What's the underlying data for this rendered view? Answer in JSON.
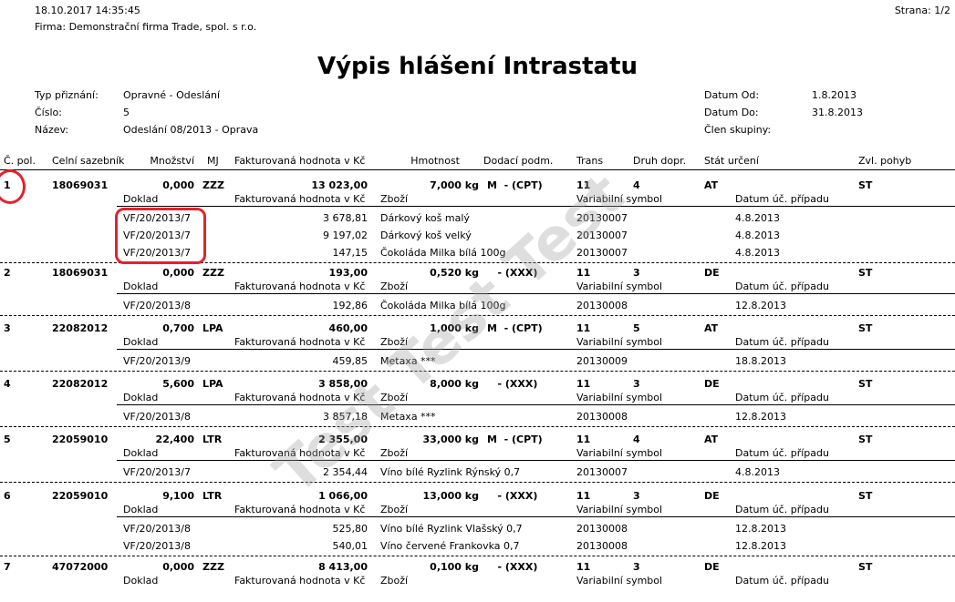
{
  "header": {
    "datetime": "18.10.2017  14:35:45",
    "page": "Strana: 1/2",
    "company": "Firma: Demonstrační firma Trade, spol. s r.o.",
    "title": "Výpis hlášení Intrastatu"
  },
  "info": {
    "type_label": "Typ přiznání:",
    "type_value": "Opravné - Odeslání",
    "number_label": "Číslo:",
    "number_value": "5",
    "name_label": "Název:",
    "name_value": "Odeslání 08/2013 - Oprava",
    "date_from_label": "Datum Od:",
    "date_from_value": "1.8.2013",
    "date_to_label": "Datum Do:",
    "date_to_value": "31.8.2013",
    "member_label": "Člen skupiny:",
    "member_value": ""
  },
  "columns": {
    "item_no": "Č. pol.",
    "tariff": "Celní sazebník",
    "quantity": "Množství",
    "unit": "MJ",
    "invoice_value": "Fakturovaná hodnota v Kč",
    "weight": "Hmotnost",
    "delivery": "Dodací podm.",
    "trans": "Trans",
    "transport": "Druh dopr.",
    "country": "Stát určení",
    "movement": "Zvl. pohyb"
  },
  "subcolumns": {
    "doc": "Doklad",
    "invoice_value": "Fakturovaná hodnota v Kč",
    "goods": "Zboží",
    "var_symbol": "Variabilní symbol",
    "date": "Datum úč. případu"
  },
  "items": [
    {
      "no": "1",
      "tariff": "18069031",
      "quantity": "0,000",
      "unit": "ZZZ",
      "value": "13 023,00",
      "weight": "7,000 kg",
      "delivery": "M  - (CPT)",
      "trans": "11",
      "transport": "4",
      "country": "AT",
      "movement": "ST",
      "details": [
        {
          "doc": "VF/20/2013/7",
          "value": "3 678,81",
          "goods": "Dárkový koš malý",
          "vs": "20130007",
          "date": "4.8.2013"
        },
        {
          "doc": "VF/20/2013/7",
          "value": "9 197,02",
          "goods": "Dárkový koš velký",
          "vs": "20130007",
          "date": "4.8.2013"
        },
        {
          "doc": "VF/20/2013/7",
          "value": "147,15",
          "goods": "Čokoláda Milka bílá 100g",
          "vs": "20130007",
          "date": "4.8.2013"
        }
      ]
    },
    {
      "no": "2",
      "tariff": "18069031",
      "quantity": "0,000",
      "unit": "ZZZ",
      "value": "193,00",
      "weight": "0,520 kg",
      "delivery": "   - (XXX)",
      "trans": "11",
      "transport": "3",
      "country": "DE",
      "movement": "ST",
      "details": [
        {
          "doc": "VF/20/2013/8",
          "value": "192,86",
          "goods": "Čokoláda Milka bílá 100g",
          "vs": "20130008",
          "date": "12.8.2013"
        }
      ]
    },
    {
      "no": "3",
      "tariff": "22082012",
      "quantity": "0,700",
      "unit": "LPA",
      "value": "460,00",
      "weight": "1,000 kg",
      "delivery": "M  - (CPT)",
      "trans": "11",
      "transport": "5",
      "country": "AT",
      "movement": "ST",
      "details": [
        {
          "doc": "VF/20/2013/9",
          "value": "459,85",
          "goods": "Metaxa ***",
          "vs": "20130009",
          "date": "18.8.2013"
        }
      ]
    },
    {
      "no": "4",
      "tariff": "22082012",
      "quantity": "5,600",
      "unit": "LPA",
      "value": "3 858,00",
      "weight": "8,000 kg",
      "delivery": "   - (XXX)",
      "trans": "11",
      "transport": "3",
      "country": "DE",
      "movement": "ST",
      "details": [
        {
          "doc": "VF/20/2013/8",
          "value": "3 857,18",
          "goods": "Metaxa ***",
          "vs": "20130008",
          "date": "12.8.2013"
        }
      ]
    },
    {
      "no": "5",
      "tariff": "22059010",
      "quantity": "22,400",
      "unit": "LTR",
      "value": "2 355,00",
      "weight": "33,000 kg",
      "delivery": "M  - (CPT)",
      "trans": "11",
      "transport": "4",
      "country": "AT",
      "movement": "ST",
      "details": [
        {
          "doc": "VF/20/2013/7",
          "value": "2 354,44",
          "goods": "Víno bílé Ryzlink Rýnský 0,7",
          "vs": "20130007",
          "date": "4.8.2013"
        }
      ]
    },
    {
      "no": "6",
      "tariff": "22059010",
      "quantity": "9,100",
      "unit": "LTR",
      "value": "1 066,00",
      "weight": "13,000 kg",
      "delivery": "   - (XXX)",
      "trans": "11",
      "transport": "3",
      "country": "DE",
      "movement": "ST",
      "details": [
        {
          "doc": "VF/20/2013/8",
          "value": "525,80",
          "goods": "Víno bílé Ryzlink Vlašský 0,7",
          "vs": "20130008",
          "date": "12.8.2013"
        },
        {
          "doc": "VF/20/2013/8",
          "value": "540,01",
          "goods": "Víno červené Frankovka 0,7",
          "vs": "20130008",
          "date": "12.8.2013"
        }
      ]
    },
    {
      "no": "7",
      "tariff": "47072000",
      "quantity": "0,000",
      "unit": "ZZZ",
      "value": "8 413,00",
      "weight": "0,100 kg",
      "delivery": "   - (XXX)",
      "trans": "11",
      "transport": "3",
      "country": "DE",
      "movement": "ST",
      "details": []
    }
  ],
  "watermark": "Test Test Test",
  "annotation_color": "#e8202a"
}
